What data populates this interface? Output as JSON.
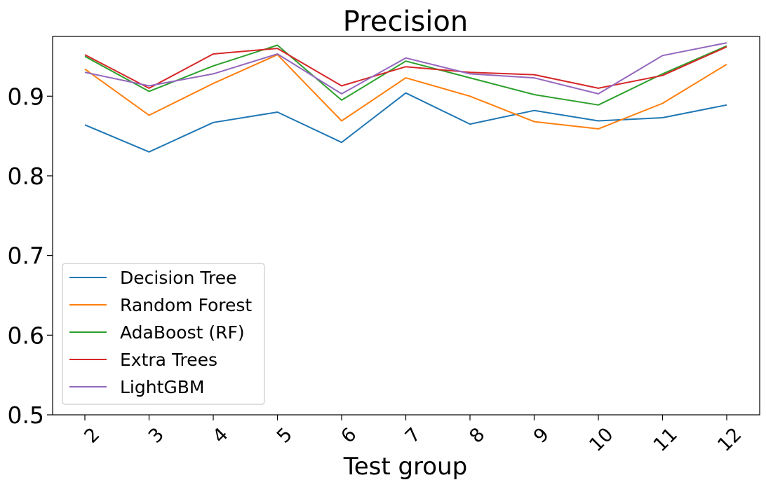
{
  "chart_data": {
    "type": "line",
    "title": "Precision",
    "xlabel": "Test group",
    "ylabel": "",
    "x": [
      "2",
      "3",
      "4",
      "5",
      "6",
      "7",
      "8",
      "9",
      "10",
      "11",
      "12"
    ],
    "ylim": [
      0.5,
      0.975
    ],
    "yticks": [
      "0.5",
      "0.6",
      "0.7",
      "0.8",
      "0.9"
    ],
    "grid": false,
    "legend_position": "lower-left",
    "series": [
      {
        "name": "Decision Tree",
        "color": "#1f77b4",
        "values": [
          0.864,
          0.83,
          0.867,
          0.88,
          0.842,
          0.904,
          0.865,
          0.882,
          0.869,
          0.873,
          0.889
        ]
      },
      {
        "name": "Random Forest",
        "color": "#ff7f0e",
        "values": [
          0.934,
          0.876,
          0.916,
          0.952,
          0.869,
          0.923,
          0.9,
          0.868,
          0.859,
          0.891,
          0.94
        ]
      },
      {
        "name": "AdaBoost (RF)",
        "color": "#2ca02c",
        "values": [
          0.95,
          0.906,
          0.938,
          0.964,
          0.895,
          0.944,
          0.923,
          0.902,
          0.889,
          0.928,
          0.963
        ]
      },
      {
        "name": "Extra Trees",
        "color": "#d62728",
        "values": [
          0.952,
          0.91,
          0.953,
          0.96,
          0.913,
          0.937,
          0.93,
          0.927,
          0.91,
          0.926,
          0.962
        ]
      },
      {
        "name": "LightGBM",
        "color": "#9467bd",
        "values": [
          0.93,
          0.913,
          0.928,
          0.953,
          0.903,
          0.948,
          0.928,
          0.923,
          0.903,
          0.951,
          0.967
        ]
      }
    ]
  }
}
